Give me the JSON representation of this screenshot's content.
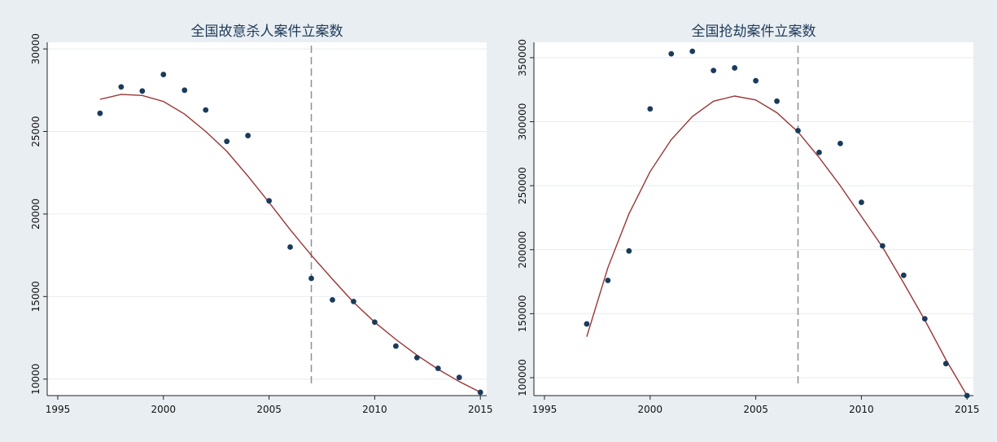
{
  "chart_data": [
    {
      "type": "scatter",
      "title": "全国故意杀人案件立案数",
      "xlabel": "",
      "ylabel": "",
      "xlim": [
        1994.5,
        2015.3
      ],
      "ylim": [
        9000,
        30400
      ],
      "x_ticks": [
        1995,
        2000,
        2005,
        2010,
        2015
      ],
      "y_ticks": [
        10000,
        15000,
        20000,
        25000,
        30000
      ],
      "grid": "horizontal",
      "vline": 2007,
      "points": [
        [
          1997,
          26100
        ],
        [
          1998,
          27700
        ],
        [
          1999,
          27450
        ],
        [
          2000,
          28450
        ],
        [
          2001,
          27500
        ],
        [
          2002,
          26300
        ],
        [
          2003,
          24400
        ],
        [
          2004,
          24750
        ],
        [
          2005,
          20800
        ],
        [
          2006,
          18000
        ],
        [
          2007,
          16100
        ],
        [
          2008,
          14800
        ],
        [
          2009,
          14700
        ],
        [
          2010,
          13450
        ],
        [
          2011,
          12000
        ],
        [
          2012,
          11300
        ],
        [
          2013,
          10650
        ],
        [
          2014,
          10100
        ],
        [
          2015,
          9200
        ]
      ],
      "fit_line": [
        [
          1997,
          26950
        ],
        [
          1998,
          27250
        ],
        [
          1999,
          27180
        ],
        [
          2000,
          26820
        ],
        [
          2001,
          26050
        ],
        [
          2002,
          25000
        ],
        [
          2003,
          23800
        ],
        [
          2004,
          22300
        ],
        [
          2005,
          20700
        ],
        [
          2006,
          19050
        ],
        [
          2007,
          17500
        ],
        [
          2008,
          16050
        ],
        [
          2009,
          14650
        ],
        [
          2010,
          13450
        ],
        [
          2011,
          12400
        ],
        [
          2012,
          11450
        ],
        [
          2013,
          10600
        ],
        [
          2014,
          9850
        ],
        [
          2015,
          9200
        ]
      ]
    },
    {
      "type": "scatter",
      "title": "全国抢劫案件立案数",
      "xlabel": "",
      "ylabel": "",
      "xlim": [
        1994.5,
        2015.3
      ],
      "ylim": [
        86000,
        362000
      ],
      "x_ticks": [
        1995,
        2000,
        2005,
        2010,
        2015
      ],
      "y_ticks": [
        100000,
        150000,
        200000,
        250000,
        300000,
        350000
      ],
      "grid": "horizontal",
      "vline": 2007,
      "points": [
        [
          1997,
          142000
        ],
        [
          1998,
          176000
        ],
        [
          1999,
          199000
        ],
        [
          2000,
          310000
        ],
        [
          2001,
          353000
        ],
        [
          2002,
          355000
        ],
        [
          2003,
          340000
        ],
        [
          2004,
          342000
        ],
        [
          2005,
          332000
        ],
        [
          2006,
          316000
        ],
        [
          2007,
          293000
        ],
        [
          2008,
          276000
        ],
        [
          2009,
          283000
        ],
        [
          2010,
          237000
        ],
        [
          2011,
          203000
        ],
        [
          2012,
          180000
        ],
        [
          2013,
          146000
        ],
        [
          2014,
          111000
        ],
        [
          2015,
          86000
        ]
      ],
      "fit_line": [
        [
          1997,
          132000
        ],
        [
          1998,
          186000
        ],
        [
          1999,
          228000
        ],
        [
          2000,
          261000
        ],
        [
          2001,
          286000
        ],
        [
          2002,
          304000
        ],
        [
          2003,
          316000
        ],
        [
          2004,
          320000
        ],
        [
          2005,
          317000
        ],
        [
          2006,
          307000
        ],
        [
          2007,
          292000
        ],
        [
          2008,
          272000
        ],
        [
          2009,
          250000
        ],
        [
          2010,
          226000
        ],
        [
          2011,
          202000
        ],
        [
          2012,
          174000
        ],
        [
          2013,
          145000
        ],
        [
          2014,
          114000
        ],
        [
          2015,
          86000
        ]
      ]
    }
  ],
  "colors": {
    "background": "#e8eef2",
    "plot_area": "#ffffff",
    "grid": "#e6ecf0",
    "points": "#1a3b5c",
    "fit_line": "#9a3434",
    "vline": "#909090",
    "title": "#1f3b5a"
  }
}
